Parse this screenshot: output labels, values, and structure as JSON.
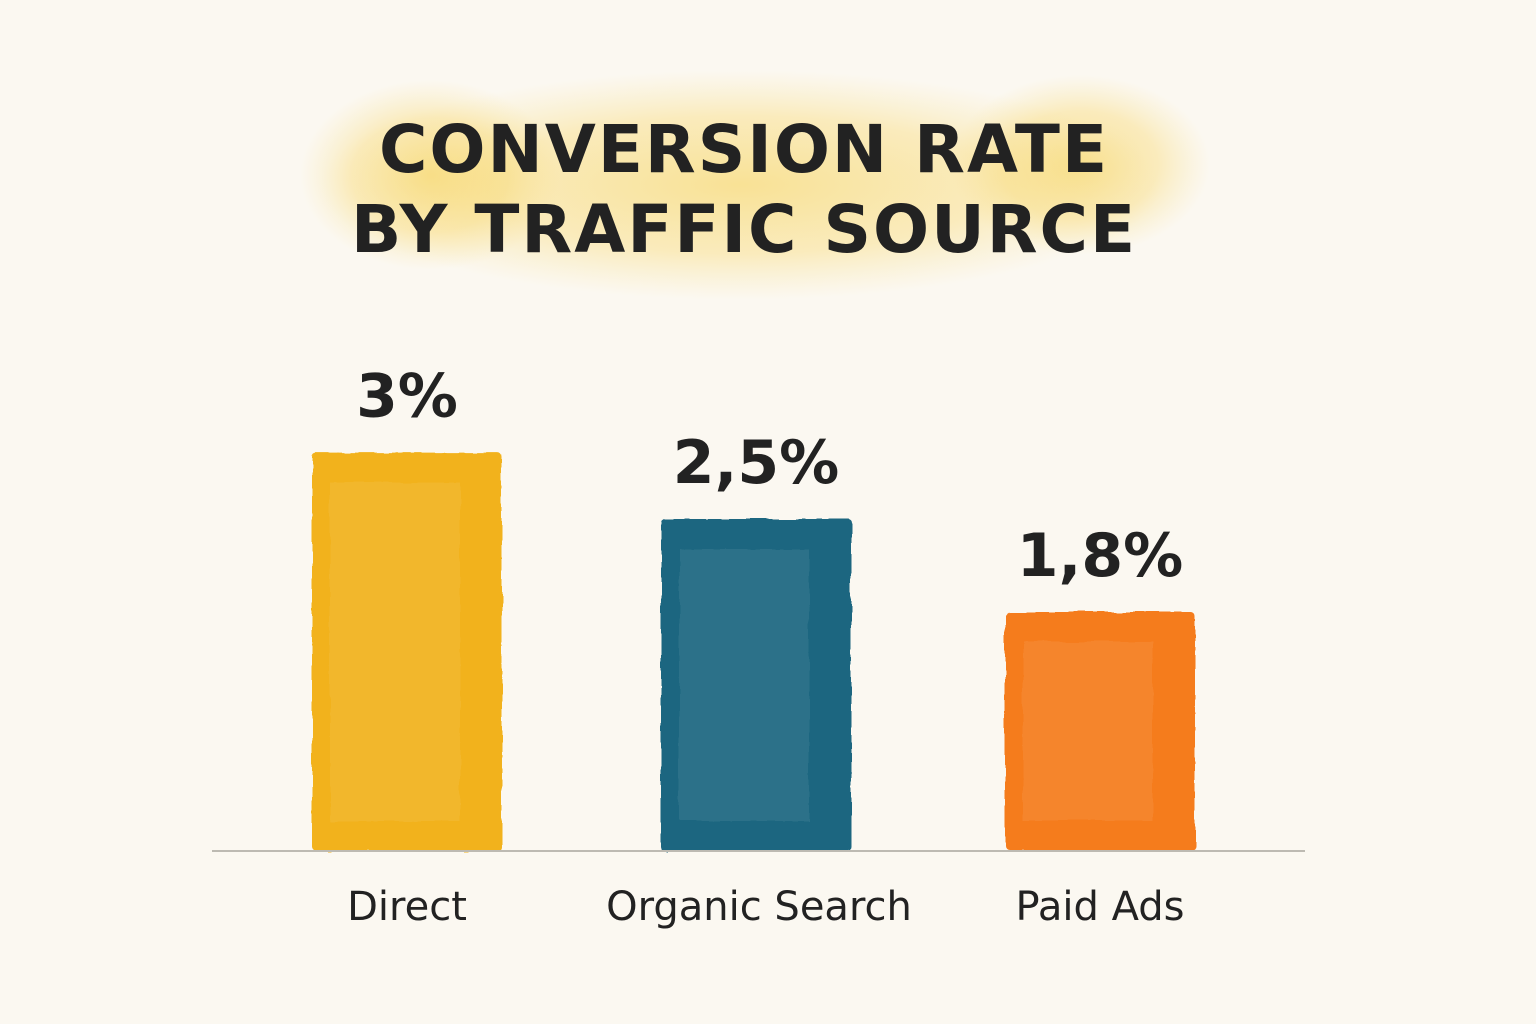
{
  "chart_data": {
    "type": "bar",
    "title_lines": [
      "CONVERSION RATE",
      "BY TRAFFIC SOURCE"
    ],
    "categories": [
      "Direct",
      "Organic Search",
      "Paid Ads"
    ],
    "values": [
      3,
      2.5,
      1.8
    ],
    "value_labels": [
      "3%",
      "2,5%",
      "1,8%"
    ],
    "colors": [
      "#f2b21e",
      "#1d6680",
      "#f57c1c"
    ],
    "ylim": [
      0,
      3.2
    ],
    "grid": false,
    "legend": "none"
  }
}
